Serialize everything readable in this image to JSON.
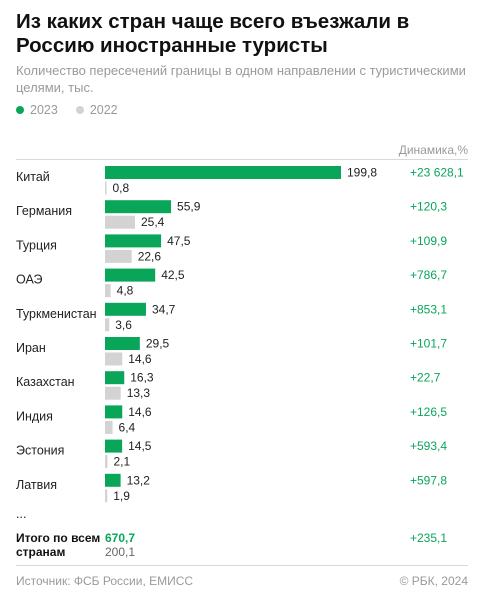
{
  "title": "Из каких стран чаще всего въезжали в Россию иностранные туристы",
  "subtitle": "Количество пересечений границы в одном направлении с туристическими целями, тыс.",
  "legend": {
    "y2023": "2023",
    "y2022": "2022"
  },
  "dynamics_header": "Динамика,%",
  "colors": {
    "green": "#09a65a",
    "gray": "#d3d3d3",
    "dyn": "#09a65a"
  },
  "chart_data": {
    "type": "bar",
    "categories": [
      "Китай",
      "Германия",
      "Турция",
      "ОАЭ",
      "Туркменистан",
      "Иран",
      "Казахстан",
      "Индия",
      "Эстония",
      "Латвия"
    ],
    "series": [
      {
        "name": "2023",
        "values": [
          199.8,
          55.9,
          47.5,
          42.5,
          34.7,
          29.5,
          16.3,
          14.6,
          14.5,
          13.2
        ],
        "labels": [
          "199,8",
          "55,9",
          "47,5",
          "42,5",
          "34,7",
          "29,5",
          "16,3",
          "14,6",
          "14,5",
          "13,2"
        ]
      },
      {
        "name": "2022",
        "values": [
          0.8,
          25.4,
          22.6,
          4.8,
          3.6,
          14.6,
          13.3,
          6.4,
          2.1,
          1.9
        ],
        "labels": [
          "0,8",
          "25,4",
          "22,6",
          "4,8",
          "3,6",
          "14,6",
          "13,3",
          "6,4",
          "2,1",
          "1,9"
        ]
      }
    ],
    "dynamics": [
      "+23 628,1",
      "+120,3",
      "+109,9",
      "+786,7",
      "+853,1",
      "+101,7",
      "+22,7",
      "+126,5",
      "+593,4",
      "+597,8"
    ],
    "ellipsis": "...",
    "total": {
      "label": "Итого по всем странам",
      "label_lines": [
        "Итого по всем",
        "странам"
      ],
      "value_2023": "670,7",
      "value_2022": "200,1",
      "dynamics": "+235,1"
    }
  },
  "footer": {
    "source": "Источник: ФСБ России, ЕМИСС",
    "copyright": "© РБК, 2024"
  }
}
